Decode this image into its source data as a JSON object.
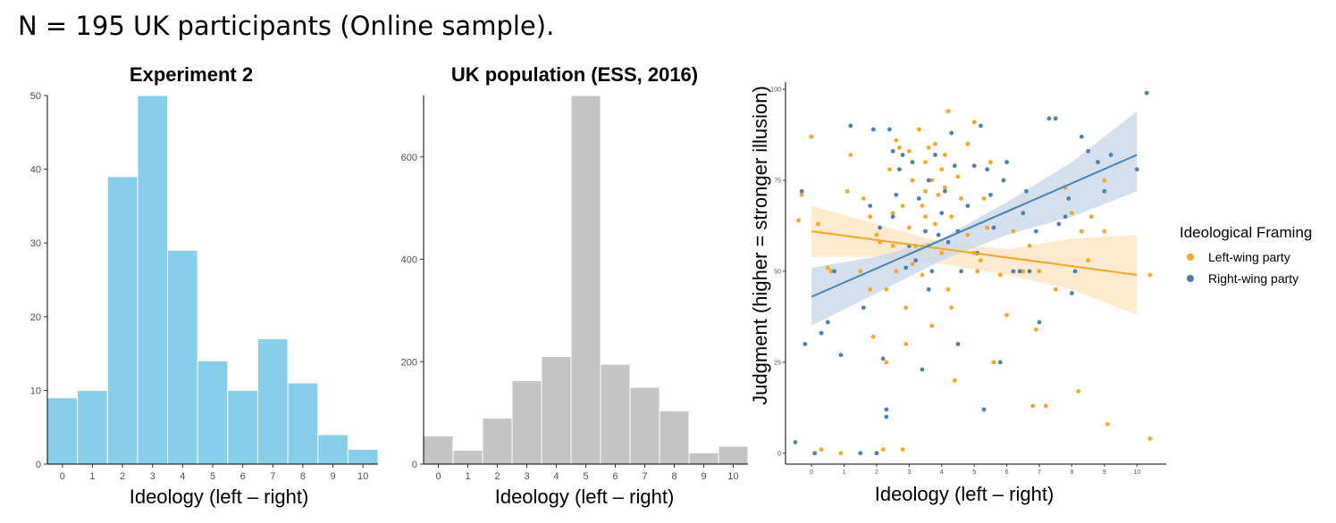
{
  "header": "N = 195 UK participants (Online sample).",
  "colors": {
    "hist1": "#87ceeb",
    "hist2": "#c4c4c4",
    "left": "#f5a623",
    "right": "#4682b4"
  },
  "chart_data": [
    {
      "type": "bar",
      "title": "Experiment 2",
      "xlabel": "Ideology (left – right)",
      "ylabel": "",
      "categories": [
        "0",
        "1",
        "2",
        "3",
        "4",
        "5",
        "6",
        "7",
        "8",
        "9",
        "10"
      ],
      "values": [
        9,
        10,
        39,
        50,
        29,
        14,
        10,
        17,
        11,
        4,
        2
      ],
      "ylim": [
        0,
        50
      ],
      "yticks": [
        0,
        10,
        20,
        30,
        40,
        50
      ]
    },
    {
      "type": "bar",
      "title": "UK population (ESS, 2016)",
      "xlabel": "Ideology (left – right)",
      "ylabel": "",
      "categories": [
        "0",
        "1",
        "2",
        "3",
        "4",
        "5",
        "6",
        "7",
        "8",
        "9",
        "10"
      ],
      "values": [
        55,
        27,
        90,
        163,
        210,
        720,
        195,
        150,
        104,
        22,
        35
      ],
      "ylim": [
        0,
        720
      ],
      "yticks": [
        0,
        200,
        400,
        600
      ]
    },
    {
      "type": "scatter",
      "title": "",
      "xlabel": "Ideology (left – right)",
      "ylabel": "Judgment (higher = stronger illusion)",
      "xlim": [
        -0.8,
        10.9
      ],
      "ylim": [
        -3,
        102
      ],
      "xticks": [
        0,
        1,
        2,
        3,
        4,
        5,
        6,
        7,
        8,
        9,
        10
      ],
      "yticks": [
        0,
        25,
        50,
        75,
        100
      ],
      "legend_title": "Ideological Framing",
      "series": [
        {
          "name": "Left-wing party",
          "color_key": "left",
          "fit": {
            "x0": 0,
            "y0": 61,
            "x1": 10,
            "y1": 49
          },
          "ci": {
            "lower": [
              [
                0,
                54
              ],
              [
                2,
                54
              ],
              [
                4,
                52
              ],
              [
                6,
                49
              ],
              [
                8,
                45
              ],
              [
                10,
                38
              ]
            ],
            "upper": [
              [
                0,
                68
              ],
              [
                2,
                63
              ],
              [
                4,
                58
              ],
              [
                6,
                56
              ],
              [
                8,
                59
              ],
              [
                10,
                60
              ]
            ]
          },
          "points": [
            [
              -0.4,
              64
            ],
            [
              -0.3,
              71
            ],
            [
              0,
              87
            ],
            [
              0.2,
              63
            ],
            [
              0.3,
              1
            ],
            [
              0.5,
              51
            ],
            [
              0.6,
              50
            ],
            [
              0.9,
              0
            ],
            [
              1.1,
              72
            ],
            [
              1.2,
              82
            ],
            [
              1.5,
              50
            ],
            [
              1.6,
              70
            ],
            [
              1.8,
              65
            ],
            [
              1.8,
              45
            ],
            [
              1.9,
              32
            ],
            [
              2.0,
              60
            ],
            [
              2.1,
              58
            ],
            [
              2.2,
              1
            ],
            [
              2.3,
              45
            ],
            [
              2.3,
              25
            ],
            [
              2.4,
              78
            ],
            [
              2.5,
              66
            ],
            [
              2.5,
              57
            ],
            [
              2.6,
              86
            ],
            [
              2.6,
              50
            ],
            [
              2.7,
              84
            ],
            [
              2.8,
              68
            ],
            [
              2.8,
              1
            ],
            [
              2.9,
              30
            ],
            [
              2.9,
              40
            ],
            [
              3.0,
              83
            ],
            [
              3.0,
              62
            ],
            [
              3.1,
              75
            ],
            [
              3.1,
              52
            ],
            [
              3.2,
              57
            ],
            [
              3.3,
              89
            ],
            [
              3.4,
              68
            ],
            [
              3.4,
              49
            ],
            [
              3.5,
              80
            ],
            [
              3.5,
              72
            ],
            [
              3.5,
              65
            ],
            [
              3.6,
              84
            ],
            [
              3.6,
              57
            ],
            [
              3.7,
              75
            ],
            [
              3.7,
              35
            ],
            [
              3.8,
              85
            ],
            [
              3.8,
              63
            ],
            [
              3.9,
              71
            ],
            [
              4.0,
              78
            ],
            [
              4.0,
              55
            ],
            [
              4.1,
              82
            ],
            [
              4.1,
              73
            ],
            [
              4.2,
              94
            ],
            [
              4.2,
              45
            ],
            [
              4.3,
              65
            ],
            [
              4.3,
              40
            ],
            [
              4.4,
              20
            ],
            [
              4.5,
              76
            ],
            [
              4.6,
              70
            ],
            [
              4.8,
              85
            ],
            [
              4.8,
              60
            ],
            [
              5.0,
              55
            ],
            [
              5.0,
              91
            ],
            [
              5.1,
              50
            ],
            [
              5.2,
              53
            ],
            [
              5.3,
              70
            ],
            [
              5.4,
              62
            ],
            [
              5.5,
              80
            ],
            [
              5.6,
              25
            ],
            [
              5.8,
              49
            ],
            [
              6.0,
              38
            ],
            [
              6.2,
              61
            ],
            [
              6.5,
              50
            ],
            [
              6.8,
              13
            ],
            [
              6.9,
              34
            ],
            [
              7.2,
              13
            ],
            [
              7.5,
              45
            ],
            [
              7.8,
              73
            ],
            [
              8.0,
              66
            ],
            [
              8.2,
              17
            ],
            [
              8.3,
              61
            ],
            [
              8.6,
              65
            ],
            [
              9.0,
              75
            ],
            [
              9.0,
              61
            ],
            [
              9.1,
              8
            ],
            [
              10.4,
              4
            ],
            [
              10.4,
              49
            ],
            [
              8.5,
              53
            ],
            [
              7.0,
              50
            ],
            [
              6.7,
              57
            ]
          ]
        },
        {
          "name": "Right-wing party",
          "color_key": "right",
          "fit": {
            "x0": 0,
            "y0": 43,
            "x1": 10,
            "y1": 82
          },
          "ci": {
            "lower": [
              [
                0,
                35
              ],
              [
                2,
                44
              ],
              [
                4,
                53
              ],
              [
                6,
                60
              ],
              [
                8,
                65
              ],
              [
                10,
                72
              ]
            ],
            "upper": [
              [
                0,
                51
              ],
              [
                2,
                54
              ],
              [
                4,
                59
              ],
              [
                6,
                69
              ],
              [
                8,
                80
              ],
              [
                10,
                94
              ]
            ]
          },
          "points": [
            [
              -0.5,
              3
            ],
            [
              -0.3,
              72
            ],
            [
              -0.2,
              30
            ],
            [
              0.1,
              0
            ],
            [
              0.3,
              33
            ],
            [
              0.5,
              36
            ],
            [
              0.7,
              50
            ],
            [
              0.9,
              27
            ],
            [
              1.2,
              90
            ],
            [
              1.5,
              0
            ],
            [
              1.6,
              40
            ],
            [
              1.8,
              68
            ],
            [
              1.9,
              89
            ],
            [
              2.0,
              0
            ],
            [
              2.1,
              62
            ],
            [
              2.2,
              26
            ],
            [
              2.3,
              12
            ],
            [
              2.3,
              10
            ],
            [
              2.4,
              89
            ],
            [
              2.5,
              83
            ],
            [
              2.5,
              65
            ],
            [
              2.6,
              71
            ],
            [
              2.7,
              78
            ],
            [
              2.8,
              82
            ],
            [
              2.9,
              51
            ],
            [
              3.0,
              57
            ],
            [
              3.1,
              80
            ],
            [
              3.2,
              53
            ],
            [
              3.3,
              70
            ],
            [
              3.4,
              23
            ],
            [
              3.5,
              61
            ],
            [
              3.6,
              75
            ],
            [
              3.6,
              45
            ],
            [
              3.7,
              50
            ],
            [
              3.8,
              82
            ],
            [
              3.9,
              60
            ],
            [
              4.0,
              66
            ],
            [
              4.1,
              72
            ],
            [
              4.2,
              58
            ],
            [
              4.3,
              88
            ],
            [
              4.4,
              79
            ],
            [
              4.5,
              61
            ],
            [
              4.5,
              30
            ],
            [
              4.6,
              50
            ],
            [
              4.8,
              68
            ],
            [
              5.0,
              79
            ],
            [
              5.1,
              55
            ],
            [
              5.2,
              90
            ],
            [
              5.3,
              12
            ],
            [
              5.4,
              78
            ],
            [
              5.5,
              71
            ],
            [
              5.6,
              62
            ],
            [
              5.8,
              25
            ],
            [
              5.9,
              75
            ],
            [
              6.0,
              80
            ],
            [
              6.2,
              50
            ],
            [
              6.5,
              66
            ],
            [
              6.6,
              72
            ],
            [
              6.7,
              50
            ],
            [
              6.9,
              61
            ],
            [
              7.0,
              36
            ],
            [
              7.3,
              92
            ],
            [
              7.5,
              92
            ],
            [
              7.8,
              65
            ],
            [
              7.9,
              70
            ],
            [
              8.0,
              44
            ],
            [
              8.3,
              87
            ],
            [
              8.5,
              83
            ],
            [
              8.8,
              80
            ],
            [
              9.0,
              72
            ],
            [
              9.2,
              82
            ],
            [
              10.0,
              78
            ],
            [
              10.3,
              99
            ],
            [
              8.1,
              50
            ],
            [
              7.6,
              63
            ],
            [
              6.4,
              50
            ]
          ]
        }
      ]
    }
  ]
}
